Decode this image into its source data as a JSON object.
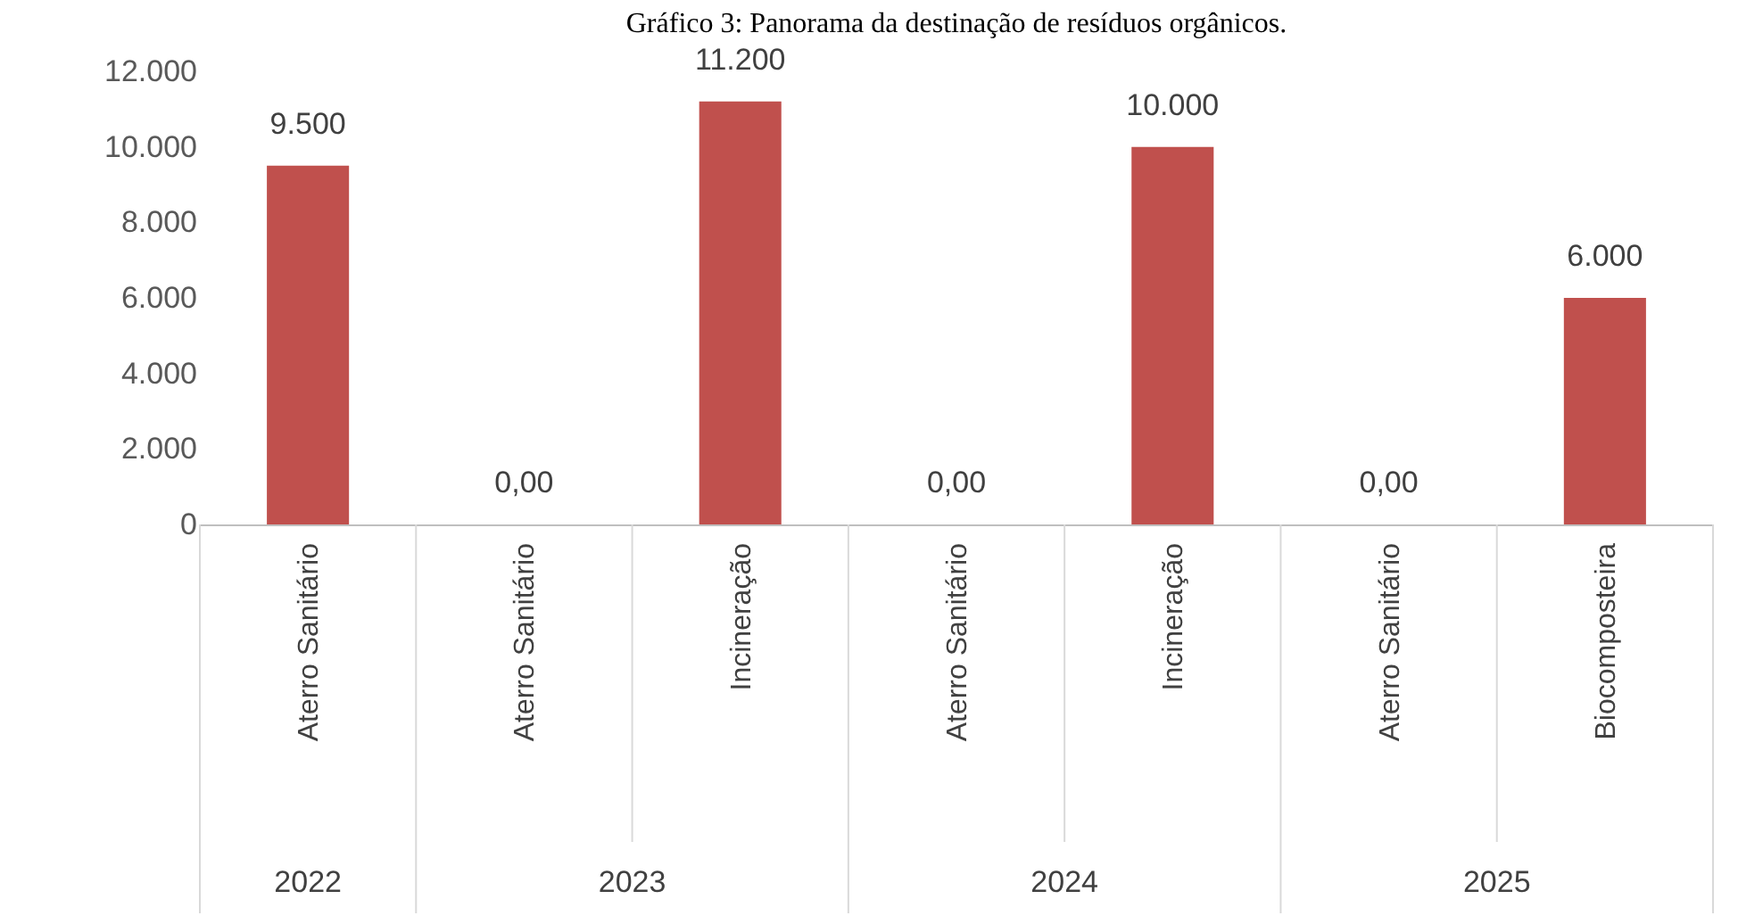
{
  "chart_data": {
    "type": "bar",
    "title": "Gráfico 3: Panorama da destinação de resíduos orgânicos.",
    "categories": [
      "Aterro Sanitário",
      "Aterro Sanitário",
      "Incineração",
      "Aterro Sanitário",
      "Incineração",
      "Aterro Sanitário",
      "Biocomposteira"
    ],
    "values": [
      9500,
      0,
      11200,
      0,
      10000,
      0,
      6000
    ],
    "value_labels": [
      "9.500",
      "0,00",
      "11.200",
      "0,00",
      "10.000",
      "0,00",
      "6.000"
    ],
    "color": "#c0504d",
    "annotations": [
      "2022",
      "2023",
      "2024",
      "2025"
    ],
    "ylim": [
      0,
      12000
    ],
    "yticks": [
      0,
      {
        "value": 2000,
        "label": "2.000"
      },
      {
        "value": 4000,
        "label": "4.000"
      },
      {
        "value": 6000,
        "label": "6.000"
      },
      {
        "value": 8000,
        "label": "8.000"
      },
      {
        "value": 10000,
        "label": "10.000"
      },
      {
        "value": 12000,
        "label": "12.000"
      }
    ],
    "grid": false
  }
}
